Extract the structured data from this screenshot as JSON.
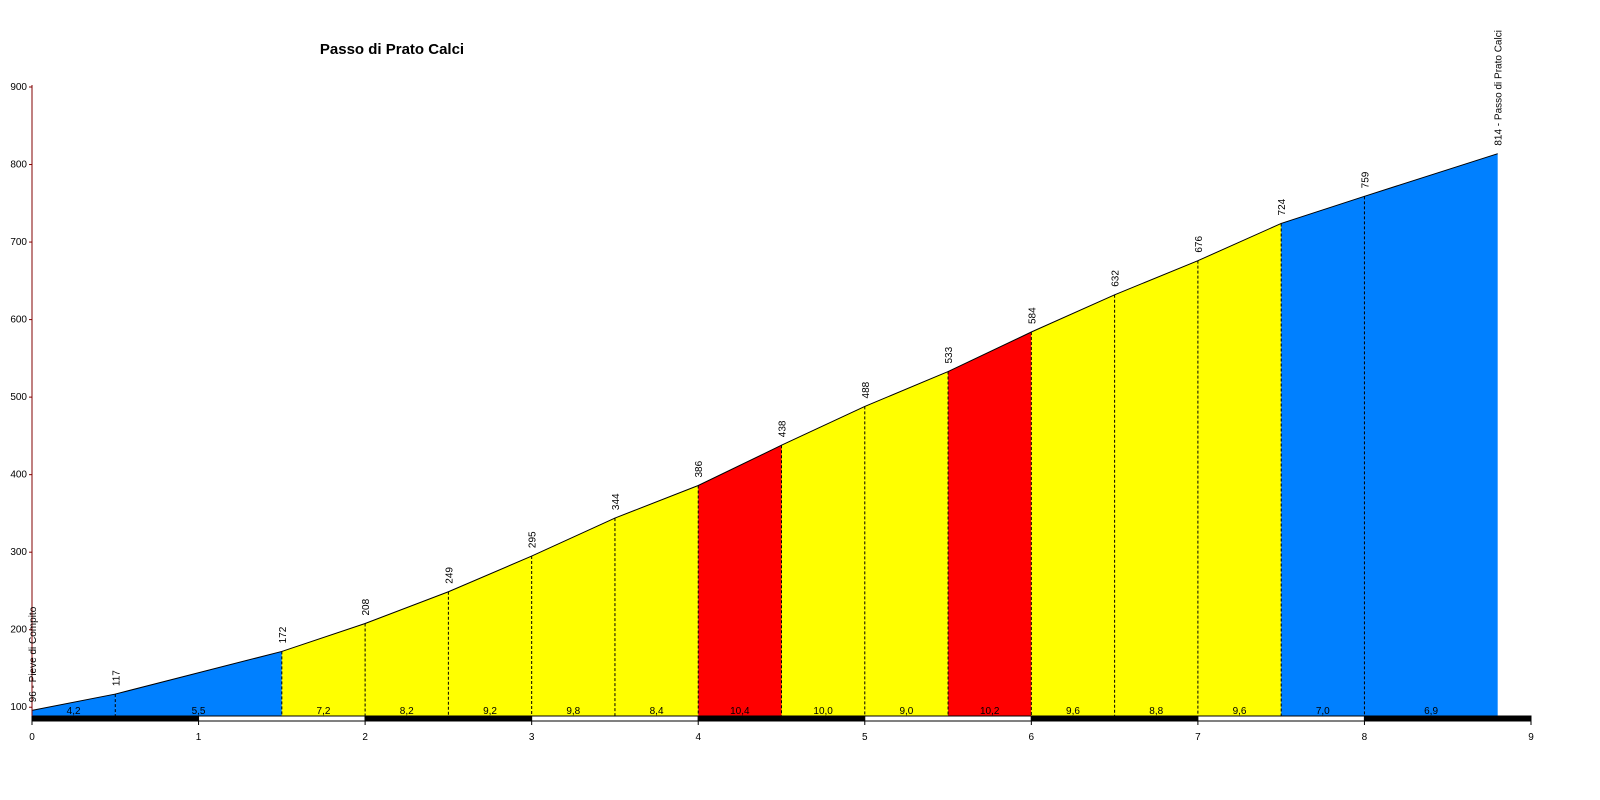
{
  "chart_data": {
    "type": "area",
    "title": "Passo di Prato Calci",
    "xlabel": "",
    "ylabel": "",
    "xlim": [
      0,
      9
    ],
    "ylim": [
      90,
      900
    ],
    "x_ticks": [
      "0",
      "1",
      "2",
      "3",
      "4",
      "5",
      "6",
      "7",
      "8",
      "9"
    ],
    "y_ticks": [
      "100",
      "200",
      "300",
      "400",
      "500",
      "600",
      "700",
      "800",
      "900"
    ],
    "x_tick_values": [
      0,
      1,
      2,
      3,
      4,
      5,
      6,
      7,
      8,
      9
    ],
    "y_tick_values": [
      100,
      200,
      300,
      400,
      500,
      600,
      700,
      800,
      900
    ],
    "points": [
      {
        "x": 0,
        "y": 96,
        "label": "96 - Pieve di Compito"
      },
      {
        "x": 0.5,
        "y": 117,
        "label": "117"
      },
      {
        "x": 1.5,
        "y": 172,
        "label": "172"
      },
      {
        "x": 2.0,
        "y": 208,
        "label": "208"
      },
      {
        "x": 2.5,
        "y": 249,
        "label": "249"
      },
      {
        "x": 3.0,
        "y": 295,
        "label": "295"
      },
      {
        "x": 3.5,
        "y": 344,
        "label": "344"
      },
      {
        "x": 4.0,
        "y": 386,
        "label": "386"
      },
      {
        "x": 4.5,
        "y": 438,
        "label": "438"
      },
      {
        "x": 5.0,
        "y": 488,
        "label": "488"
      },
      {
        "x": 5.5,
        "y": 533,
        "label": "533"
      },
      {
        "x": 6.0,
        "y": 584,
        "label": "584"
      },
      {
        "x": 6.5,
        "y": 632,
        "label": "632"
      },
      {
        "x": 7.0,
        "y": 676,
        "label": "676"
      },
      {
        "x": 7.5,
        "y": 724,
        "label": "724"
      },
      {
        "x": 8.0,
        "y": 759,
        "label": "759"
      },
      {
        "x": 8.8,
        "y": 814,
        "label": "814 - Passo di Prato Calci"
      }
    ],
    "segments": [
      {
        "x0": 0,
        "x1": 0.5,
        "gradient": "4,2",
        "color": "#0080ff"
      },
      {
        "x0": 0.5,
        "x1": 1.5,
        "gradient": "5,5",
        "color": "#0080ff"
      },
      {
        "x0": 1.5,
        "x1": 2.0,
        "gradient": "7,2",
        "color": "#ffff00"
      },
      {
        "x0": 2.0,
        "x1": 2.5,
        "gradient": "8,2",
        "color": "#ffff00"
      },
      {
        "x0": 2.5,
        "x1": 3.0,
        "gradient": "9,2",
        "color": "#ffff00"
      },
      {
        "x0": 3.0,
        "x1": 3.5,
        "gradient": "9,8",
        "color": "#ffff00"
      },
      {
        "x0": 3.5,
        "x1": 4.0,
        "gradient": "8,4",
        "color": "#ffff00"
      },
      {
        "x0": 4.0,
        "x1": 4.5,
        "gradient": "10,4",
        "color": "#ff0000"
      },
      {
        "x0": 4.5,
        "x1": 5.0,
        "gradient": "10,0",
        "color": "#ffff00"
      },
      {
        "x0": 5.0,
        "x1": 5.5,
        "gradient": "9,0",
        "color": "#ffff00"
      },
      {
        "x0": 5.5,
        "x1": 6.0,
        "gradient": "10,2",
        "color": "#ff0000"
      },
      {
        "x0": 6.0,
        "x1": 6.5,
        "gradient": "9,6",
        "color": "#ffff00"
      },
      {
        "x0": 6.5,
        "x1": 7.0,
        "gradient": "8,8",
        "color": "#ffff00"
      },
      {
        "x0": 7.0,
        "x1": 7.5,
        "gradient": "9,6",
        "color": "#ffff00"
      },
      {
        "x0": 7.5,
        "x1": 8.0,
        "gradient": "7,0",
        "color": "#0080ff"
      },
      {
        "x0": 8.0,
        "x1": 8.8,
        "gradient": "6,9",
        "color": "#0080ff"
      }
    ],
    "colors": {
      "axis": "#800000",
      "line": "#000000",
      "bar_dark": "#000000",
      "bar_light": "#ffffff"
    },
    "grid": false,
    "legend": "none"
  }
}
